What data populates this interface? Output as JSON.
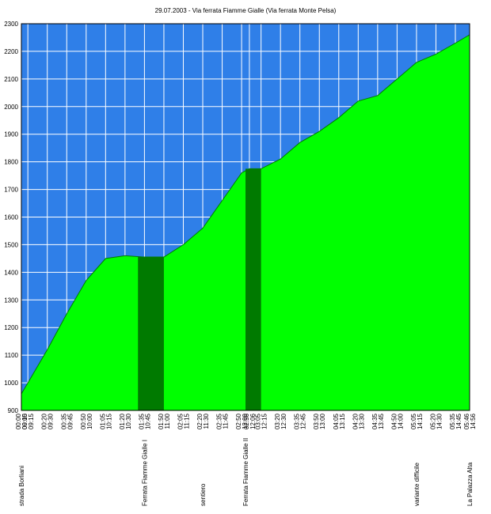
{
  "chart_data": {
    "type": "area",
    "title": "29.07.2003  -  Via ferrata Fiamme Gialle (Via ferrata Monte Pelsa)",
    "ylim": [
      900,
      2300
    ],
    "yticks": [
      900,
      1000,
      1100,
      1200,
      1300,
      1400,
      1500,
      1600,
      1700,
      1800,
      1900,
      2000,
      2100,
      2200,
      2300
    ],
    "grid": true,
    "colors": {
      "plot_background": "#2f7fe8",
      "area_fill": "#00ff00",
      "area_outline": "#007a00",
      "ferrata_band": "#007a00",
      "grid": "#ffffff"
    },
    "tick_labels": [
      {
        "elapsed": "00:00",
        "clock": "09:10"
      },
      {
        "elapsed": "00:05",
        "clock": "09:15"
      },
      {
        "elapsed": "00:20",
        "clock": "09:30"
      },
      {
        "elapsed": "00:35",
        "clock": "09:45"
      },
      {
        "elapsed": "00:50",
        "clock": "10:00"
      },
      {
        "elapsed": "01:05",
        "clock": "10:15"
      },
      {
        "elapsed": "01:20",
        "clock": "10:30"
      },
      {
        "elapsed": "01:35",
        "clock": "10:45"
      },
      {
        "elapsed": "01:50",
        "clock": "11:00"
      },
      {
        "elapsed": "02:05",
        "clock": "11:15"
      },
      {
        "elapsed": "02:20",
        "clock": "11:30"
      },
      {
        "elapsed": "02:35",
        "clock": "11:45"
      },
      {
        "elapsed": "02:50",
        "clock": "12:00"
      },
      {
        "elapsed": "02:56",
        "clock": "12:06"
      },
      {
        "elapsed": "03:05",
        "clock": "12:15"
      },
      {
        "elapsed": "03:20",
        "clock": "12:30"
      },
      {
        "elapsed": "03:35",
        "clock": "12:45"
      },
      {
        "elapsed": "03:50",
        "clock": "13:00"
      },
      {
        "elapsed": "04:05",
        "clock": "13:15"
      },
      {
        "elapsed": "04:20",
        "clock": "13:30"
      },
      {
        "elapsed": "04:35",
        "clock": "13:45"
      },
      {
        "elapsed": "04:50",
        "clock": "14:00"
      },
      {
        "elapsed": "05:05",
        "clock": "14:15"
      },
      {
        "elapsed": "05:20",
        "clock": "14:30"
      },
      {
        "elapsed": "05:35",
        "clock": "14:45"
      },
      {
        "elapsed": "05:46",
        "clock": "14:56"
      }
    ],
    "series": [
      {
        "points": [
          {
            "x": "00:00",
            "y": 960
          },
          {
            "x": "00:05",
            "y": 1000
          },
          {
            "x": "00:20",
            "y": 1120
          },
          {
            "x": "00:35",
            "y": 1250
          },
          {
            "x": "00:50",
            "y": 1370
          },
          {
            "x": "01:05",
            "y": 1450
          },
          {
            "x": "01:20",
            "y": 1460
          },
          {
            "x": "01:35",
            "y": 1455
          },
          {
            "x": "01:50",
            "y": 1455
          },
          {
            "x": "02:05",
            "y": 1500
          },
          {
            "x": "02:20",
            "y": 1560
          },
          {
            "x": "02:35",
            "y": 1660
          },
          {
            "x": "02:50",
            "y": 1760
          },
          {
            "x": "02:56",
            "y": 1775
          },
          {
            "x": "03:05",
            "y": 1775
          },
          {
            "x": "03:20",
            "y": 1810
          },
          {
            "x": "03:35",
            "y": 1870
          },
          {
            "x": "03:50",
            "y": 1910
          },
          {
            "x": "04:05",
            "y": 1960
          },
          {
            "x": "04:20",
            "y": 2020
          },
          {
            "x": "04:35",
            "y": 2040
          },
          {
            "x": "04:50",
            "y": 2100
          },
          {
            "x": "05:05",
            "y": 2160
          },
          {
            "x": "05:20",
            "y": 2190
          },
          {
            "x": "05:35",
            "y": 2230
          },
          {
            "x": "05:46",
            "y": 2260
          }
        ]
      }
    ],
    "ferrata_sections": [
      {
        "start": "01:30",
        "end": "01:50"
      },
      {
        "start": "02:53",
        "end": "03:05"
      }
    ],
    "annotations": [
      {
        "x": "00:00",
        "text": "strada Borliani"
      },
      {
        "x": "01:35",
        "text": "Ferrata Fiamme Gialle I"
      },
      {
        "x": "02:20",
        "text": "sentiero"
      },
      {
        "x": "02:53",
        "text": "Ferrata Fiamme Gialle II"
      },
      {
        "x": "05:05",
        "text": "variante difficile"
      },
      {
        "x": "05:46",
        "text": "La Palazza Alta"
      }
    ]
  }
}
